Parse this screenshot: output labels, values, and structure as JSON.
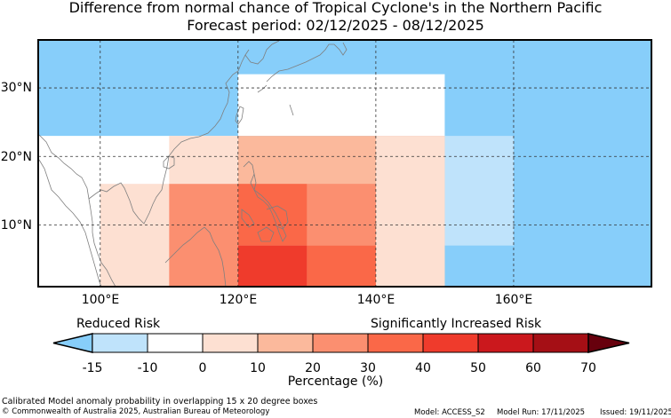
{
  "title_line1": "Difference from normal chance of Tropical Cyclone's in the Northern Pacific",
  "title_line2": "Forecast period: 02/12/2025 - 08/12/2025",
  "colorbar": {
    "reduced_label": "Reduced Risk",
    "increased_label": "Significantly Increased Risk",
    "axis_label": "Percentage (%)",
    "ticks": [
      "-15",
      "-10",
      "0",
      "10",
      "20",
      "30",
      "40",
      "50",
      "60",
      "70"
    ],
    "colors": {
      "below_min": "#87cefa",
      "bins": [
        "#bfe3fb",
        "#ffffff",
        "#fde0d2",
        "#fbb99c",
        "#fb8f70",
        "#fa6848",
        "#ef3b2c",
        "#cb181d",
        "#a50f15"
      ],
      "above_max": "#67000d"
    }
  },
  "map": {
    "lat_labels": [
      "30°N",
      "20°N",
      "10°N"
    ],
    "lon_labels": [
      "100°E",
      "120°E",
      "140°E",
      "160°E"
    ],
    "extent": {
      "lon": [
        91,
        180
      ],
      "lat": [
        1,
        37
      ]
    },
    "gridlines": {
      "lons": [
        100,
        120,
        140,
        160
      ],
      "lats": [
        10,
        20,
        30
      ]
    },
    "background_color": "#87cefa",
    "cells": [
      {
        "lon": [
          91,
          120
        ],
        "lat": [
          1,
          23
        ],
        "value": -5
      },
      {
        "lon": [
          120,
          150
        ],
        "lat": [
          23,
          32
        ],
        "value": -5
      },
      {
        "lon": [
          120,
          150
        ],
        "lat": [
          1,
          23
        ],
        "value": 15
      },
      {
        "lon": [
          150,
          160
        ],
        "lat": [
          7,
          23
        ],
        "value": -12
      },
      {
        "lon": [
          100,
          110
        ],
        "lat": [
          1,
          16
        ],
        "value": 5
      },
      {
        "lon": [
          110,
          120
        ],
        "lat": [
          16,
          23
        ],
        "value": 5
      },
      {
        "lon": [
          140,
          150
        ],
        "lat": [
          1,
          23
        ],
        "value": 5
      },
      {
        "lon": [
          110,
          120
        ],
        "lat": [
          1,
          16
        ],
        "value": 25
      },
      {
        "lon": [
          130,
          140
        ],
        "lat": [
          7,
          16
        ],
        "value": 25
      },
      {
        "lon": [
          120,
          130
        ],
        "lat": [
          7,
          16
        ],
        "value": 35
      },
      {
        "lon": [
          130,
          140
        ],
        "lat": [
          1,
          7
        ],
        "value": 35
      },
      {
        "lon": [
          120,
          130
        ],
        "lat": [
          1,
          7
        ],
        "value": 45
      }
    ]
  },
  "footer": {
    "note": "Calibrated Model anomaly probability in overlapping 15 x 20 degree boxes",
    "copyright": "© Commonwealth of Australia 2025, Australian Bureau of Meteorology",
    "model": "Model: ACCESS_S2",
    "model_run": "Model Run: 17/11/2025",
    "issued": "Issued: 19/11/2025"
  }
}
